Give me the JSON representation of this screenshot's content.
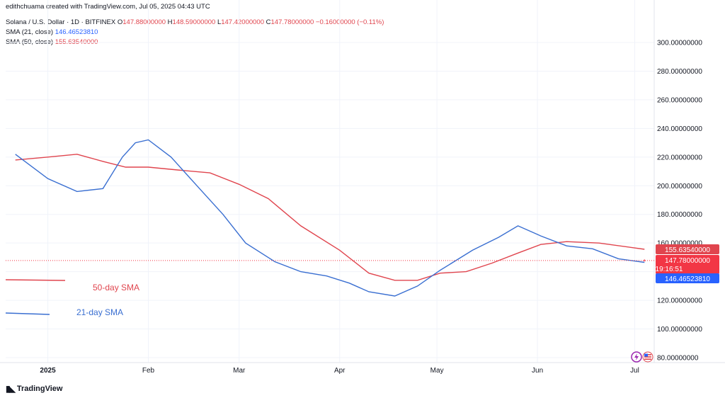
{
  "header": {
    "attribution": "edithchuama created with TradingView.com, Jul 05, 2025 04:43 UTC",
    "symbol": "Solana / U.S. Dollar · 1D · BITFINEX",
    "ohlc": {
      "o_label": "O",
      "o": "147.88000000",
      "h_label": "H",
      "h": "148.59000000",
      "l_label": "L",
      "l": "147.42000000",
      "c_label": "C",
      "c": "147.78000000",
      "change": "−0.16000000 (−0.11%)"
    },
    "sma21_label": "SMA (21, close)",
    "sma21_value": "146.46523810",
    "sma50_label": "SMA (50, close)",
    "sma50_value": "155.63540000"
  },
  "colors": {
    "up": "#22ab94",
    "down": "#f23645",
    "sma21": "#3a6fd1",
    "sma50": "#e0454e",
    "grid": "#f0f3fa"
  },
  "axis": {
    "y_ticks": [
      "80.00000000",
      "100.00000000",
      "120.00000000",
      "140.00000000",
      "160.00000000",
      "180.00000000",
      "200.00000000",
      "220.00000000",
      "240.00000000",
      "260.00000000",
      "280.00000000",
      "300.00000000"
    ],
    "x_ticks": [
      "2025",
      "Feb",
      "Mar",
      "Apr",
      "May",
      "Jun",
      "Jul"
    ]
  },
  "price_tags": {
    "sma50": "155.63540000",
    "last": "147.78000000",
    "countdown": "19:16:51",
    "sma21": "146.46523810"
  },
  "annotations": {
    "sma50": "50-day SMA",
    "sma21": "21-day SMA"
  },
  "footer": {
    "brand": "TradingView"
  },
  "chart_data": {
    "type": "candlestick",
    "title": "Solana / U.S. Dollar · 1D · BITFINEX",
    "x_labels": [
      "2025",
      "Feb",
      "Mar",
      "Apr",
      "May",
      "Jun",
      "Jul"
    ],
    "ylim": [
      80,
      300
    ],
    "grid": true,
    "series": [
      {
        "name": "SMA (21, close)",
        "type": "line",
        "points": [
          [
            "Dec 22",
            222
          ],
          [
            "Jan 01",
            205
          ],
          [
            "Jan 10",
            196
          ],
          [
            "Jan 18",
            198
          ],
          [
            "Jan 24",
            220
          ],
          [
            "Jan 28",
            230
          ],
          [
            "Feb 01",
            232
          ],
          [
            "Feb 08",
            220
          ],
          [
            "Feb 16",
            200
          ],
          [
            "Feb 24",
            180
          ],
          [
            "Mar 03",
            160
          ],
          [
            "Mar 12",
            147
          ],
          [
            "Mar 20",
            140
          ],
          [
            "Mar 28",
            137
          ],
          [
            "Apr 04",
            132
          ],
          [
            "Apr 10",
            126
          ],
          [
            "Apr 18",
            123
          ],
          [
            "Apr 25",
            130
          ],
          [
            "May 02",
            141
          ],
          [
            "May 12",
            155
          ],
          [
            "May 20",
            164
          ],
          [
            "May 26",
            172
          ],
          [
            "Jun 02",
            165
          ],
          [
            "Jun 10",
            158
          ],
          [
            "Jun 18",
            156
          ],
          [
            "Jun 26",
            149
          ],
          [
            "Jul 04",
            146.47
          ]
        ]
      },
      {
        "name": "SMA (50, close)",
        "type": "line",
        "points": [
          [
            "Dec 22",
            218
          ],
          [
            "Jan 01",
            220
          ],
          [
            "Jan 10",
            222
          ],
          [
            "Jan 18",
            217
          ],
          [
            "Jan 25",
            213
          ],
          [
            "Feb 01",
            213
          ],
          [
            "Feb 10",
            211
          ],
          [
            "Feb 20",
            209
          ],
          [
            "Mar 01",
            201
          ],
          [
            "Mar 10",
            191
          ],
          [
            "Mar 20",
            172
          ],
          [
            "Apr 01",
            155
          ],
          [
            "Apr 10",
            139
          ],
          [
            "Apr 18",
            134
          ],
          [
            "Apr 25",
            134
          ],
          [
            "May 02",
            139
          ],
          [
            "May 10",
            140
          ],
          [
            "May 18",
            146
          ],
          [
            "May 26",
            153
          ],
          [
            "Jun 02",
            159
          ],
          [
            "Jun 10",
            161
          ],
          [
            "Jun 20",
            160
          ],
          [
            "Jul 04",
            155.64
          ]
        ]
      },
      {
        "name": "candles",
        "type": "ohlc",
        "fields": [
          "x",
          "open",
          "high",
          "low",
          "close"
        ],
        "points": [
          [
            "Jul 04",
            147.88,
            148.59,
            147.42,
            147.78
          ]
        ]
      }
    ],
    "last_price": 147.78,
    "last_change": -0.16
  }
}
